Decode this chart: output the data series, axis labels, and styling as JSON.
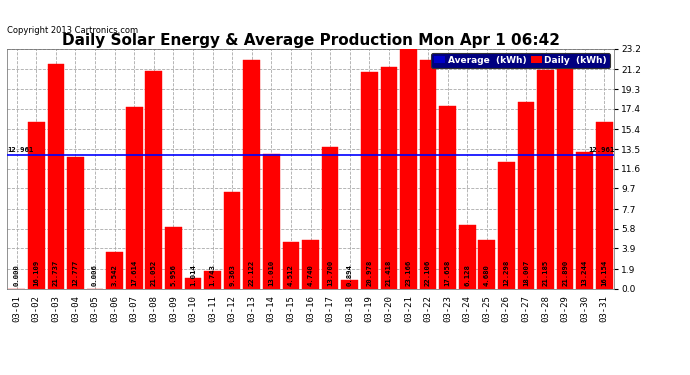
{
  "title": "Daily Solar Energy & Average Production Mon Apr 1 06:42",
  "copyright": "Copyright 2013 Cartronics.com",
  "categories": [
    "03-01",
    "03-02",
    "03-03",
    "03-04",
    "03-05",
    "03-06",
    "03-07",
    "03-08",
    "03-09",
    "03-10",
    "03-11",
    "03-12",
    "03-13",
    "03-14",
    "03-15",
    "03-16",
    "03-17",
    "03-18",
    "03-19",
    "03-20",
    "03-21",
    "03-22",
    "03-23",
    "03-24",
    "03-25",
    "03-26",
    "03-27",
    "03-28",
    "03-29",
    "03-30",
    "03-31"
  ],
  "values": [
    0.0,
    16.109,
    21.737,
    12.777,
    0.006,
    3.542,
    17.614,
    21.052,
    5.956,
    1.014,
    1.743,
    9.363,
    22.122,
    13.01,
    4.512,
    4.74,
    13.7,
    0.894,
    20.978,
    21.418,
    23.166,
    22.106,
    17.658,
    6.128,
    4.68,
    12.298,
    18.007,
    21.185,
    21.89,
    13.244,
    16.154
  ],
  "average": 12.961,
  "bar_color": "#FF0000",
  "average_line_color": "#0000FF",
  "yticks": [
    0.0,
    1.9,
    3.9,
    5.8,
    7.7,
    9.7,
    11.6,
    13.5,
    15.4,
    17.4,
    19.3,
    21.2,
    23.2
  ],
  "ymax": 23.2,
  "ymin": 0.0,
  "bg_color": "#FFFFFF",
  "plot_bg_color": "#FFFFFF",
  "grid_color": "#AAAAAA",
  "legend_avg_color": "#0000CC",
  "legend_daily_color": "#FF0000",
  "title_fontsize": 11,
  "tick_fontsize": 6.5,
  "label_fontsize": 5.2,
  "bar_edge_color": "#FF0000"
}
